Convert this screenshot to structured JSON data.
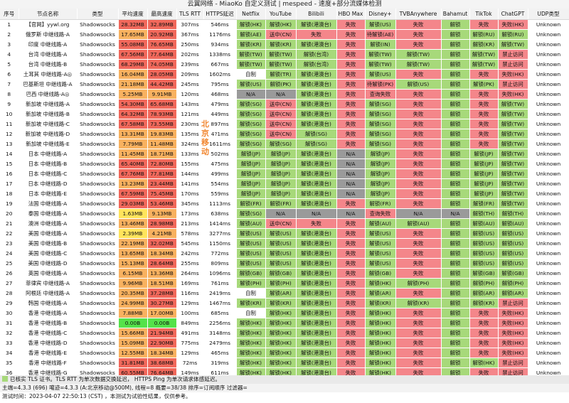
{
  "title": "云翼网络 - MiaoKo 自定义测试 | mespeed - 速度+部分流媒体检测",
  "columns": [
    "序号",
    "节点名称",
    "类型",
    "平均速度",
    "最高速度",
    "TLS RTT",
    "HTTPS延迟",
    "Netflix",
    "YouTube",
    "Bilibili",
    "HBO Max",
    "Disney+",
    "TVBAnywhere",
    "Bahamut",
    "TikTok",
    "ChatGPT",
    "UDP类型"
  ],
  "watermark": "北京移动",
  "rows": [
    [
      "1",
      "【官网】yywl.org",
      "Shadowsocks",
      "28.32MB",
      "32.89MB",
      "307ms",
      "546ms",
      "解锁(HK)",
      "解锁(HK)",
      "解锁(港澳台)",
      "失败",
      "解锁(US)",
      "失败",
      "解锁",
      "失败",
      "失败(HK)",
      "Unknown"
    ],
    [
      "2",
      "俄罗斯 中继线路-A",
      "Shadowsocks",
      "17.65MB",
      "20.92MB",
      "367ms",
      "1176ms",
      "解锁(AE)",
      "送中(CN)",
      "失败",
      "失败",
      "待解锁(AE)",
      "失败",
      "解锁",
      "解锁(RU)",
      "解锁(RU)",
      "Unknown"
    ],
    [
      "3",
      "印度 中继线路-A",
      "Shadowsocks",
      "55.08MB",
      "76.65MB",
      "250ms",
      "934ms",
      "解锁(KR)",
      "解锁(KR)",
      "解锁(港澳台)",
      "失败",
      "解锁(IN)",
      "失败",
      "解锁",
      "解锁(KR)",
      "解锁(TW)",
      "Unknown"
    ],
    [
      "4",
      "台湾 中继线路-A",
      "Shadowsocks",
      "67.56MB",
      "77.64MB",
      "202ms",
      "1338ms",
      "解锁(TW)",
      "解锁(TW)",
      "解锁(台湾)",
      "失败",
      "解锁(TW)",
      "解锁(TW)",
      "解锁",
      "解锁(TW)",
      "禁止访问",
      "Unknown"
    ],
    [
      "5",
      "台湾 中继线路-B",
      "Shadowsocks",
      "68.29MB",
      "74.05MB",
      "239ms",
      "667ms",
      "解锁(TW)",
      "解锁(TW)",
      "解锁(台湾)",
      "失败",
      "解锁(TW)",
      "解锁(TW)",
      "解锁",
      "解锁(TW)",
      "禁止访问",
      "Unknown"
    ],
    [
      "6",
      "土耳其 中继线路-A◎",
      "Shadowsocks",
      "16.04MB",
      "28.05MB",
      "209ms",
      "1602ms",
      "自制",
      "解锁(TR)",
      "解锁(港澳台)",
      "失败",
      "解锁(US)",
      "失败",
      "解锁",
      "失败",
      "失败(HK)",
      "Unknown"
    ],
    [
      "7",
      "巴基斯坦 中继线路-A",
      "Shadowsocks",
      "21.18MB",
      "44.42MB",
      "245ms",
      "795ms",
      "解锁(US)",
      "解锁(PK)",
      "解锁(港澳台)",
      "失败",
      "待解锁(PK)",
      "解锁(US)",
      "解锁",
      "解锁(PK)",
      "禁止访问",
      "Unknown"
    ],
    [
      "8",
      "巴西 中继线路-A◎",
      "Shadowsocks",
      "5.25MB",
      "9.91MB",
      "120ms",
      "468ms",
      "N/A",
      "N/A",
      "解锁(港澳台)",
      "失败",
      "查询失败",
      "失败",
      "解锁",
      "失败",
      "失败(HK)",
      "Unknown"
    ],
    [
      "9",
      "新加坡 中继线路-A",
      "Shadowsocks",
      "54.30MB",
      "65.68MB",
      "143ms",
      "479ms",
      "解锁(SG)",
      "送中(CN)",
      "解锁(港澳台)",
      "失败",
      "解锁(SG)",
      "失败",
      "解锁",
      "失败",
      "解锁(TW)",
      "Unknown"
    ],
    [
      "10",
      "新加坡 中继线路-B",
      "Shadowsocks",
      "64.32MB",
      "78.93MB",
      "121ms",
      "449ms",
      "解锁(SG)",
      "送中(CN)",
      "解锁(港澳台)",
      "失败",
      "解锁(SG)",
      "失败",
      "解锁",
      "失败",
      "解锁(TW)",
      "Unknown"
    ],
    [
      "11",
      "新加坡 中继线路-C",
      "Shadowsocks",
      "67.58MB",
      "73.55MB",
      "230ms",
      "897ms",
      "解锁(SG)",
      "送中(CN)",
      "解锁(港澳台)",
      "失败",
      "解锁(SG)",
      "失败",
      "解锁",
      "失败",
      "解锁(TW)",
      "Unknown"
    ],
    [
      "12",
      "新加坡 中继线路-D",
      "Shadowsocks",
      "13.31MB",
      "19.83MB",
      "135ms",
      "4?1ms",
      "解锁(SG)",
      "送中(CN)",
      "解锁(SG)",
      "失败",
      "解锁(SG)",
      "失败",
      "解锁",
      "失败",
      "解锁(TW)",
      "Unknown"
    ],
    [
      "13",
      "新加坡 中继线路-E",
      "Shadowsocks",
      "7.79MB",
      "11.48MB",
      "324ms",
      "1611ms",
      "解锁(SG)",
      "解锁(SG)",
      "解锁(SG)",
      "失败",
      "解锁(SG)",
      "失败",
      "解锁",
      "失败",
      "解锁(TW)",
      "Unknown"
    ],
    [
      "14",
      "日本 中继线路-A",
      "Shadowsocks",
      "11.45MB",
      "18.71MB",
      "133ms",
      "502ms",
      "解锁(JP)",
      "解锁(JP)",
      "解锁(港澳台)",
      "N/A",
      "解锁(JP)",
      "失败",
      "解锁",
      "解锁(JP)",
      "解锁(TW)",
      "Unknown"
    ],
    [
      "15",
      "日本 中继线路-B",
      "Shadowsocks",
      "65.40MB",
      "72.80MB",
      "155ms",
      "475ms",
      "解锁(JP)",
      "解锁(JP)",
      "解锁(港澳台)",
      "N/A",
      "解锁(JP)",
      "失败",
      "解锁",
      "解锁(JP)",
      "解锁(TW)",
      "Unknown"
    ],
    [
      "16",
      "日本 中继线路-C",
      "Shadowsocks",
      "67.76MB",
      "77.81MB",
      "144ms",
      "499ms",
      "解锁(JP)",
      "解锁(JP)",
      "解锁(港澳台)",
      "N/A",
      "解锁(JP)",
      "失败",
      "解锁",
      "解锁(JP)",
      "解锁(TW)",
      "Unknown"
    ],
    [
      "17",
      "日本 中继线路-D",
      "Shadowsocks",
      "13.23MB",
      "23.44MB",
      "141ms",
      "554ms",
      "解锁(JP)",
      "解锁(JP)",
      "解锁(港澳台)",
      "N/A",
      "解锁(JP)",
      "失败",
      "解锁",
      "解锁(JP)",
      "解锁(TW)",
      "Unknown"
    ],
    [
      "18",
      "日本 中继线路-E",
      "Shadowsocks",
      "67.59MB",
      "75.45MB",
      "170ms",
      "559ms",
      "解锁(JP)",
      "解锁(JP)",
      "解锁(港澳台)",
      "N/A",
      "解锁(JP)",
      "失败",
      "解锁",
      "解锁(JP)",
      "解锁(TW)",
      "Unknown"
    ],
    [
      "19",
      "法国 中继线路-A",
      "Shadowsocks",
      "29.03MB",
      "53.46MB",
      "345ms",
      "1113ms",
      "解锁(FR)",
      "解锁(FR)",
      "解锁(港澳台)",
      "失败",
      "解锁(FR)",
      "失败",
      "解锁",
      "解锁(FR)",
      "解锁(TW)",
      "Unknown"
    ],
    [
      "20",
      "泰国 中继线路-A",
      "Shadowsocks",
      "1.63MB",
      "9.13MB",
      "173ms",
      "638ms",
      "解锁(SG)",
      "N/A",
      "N/A",
      "N/A",
      "查询失败",
      "N/A",
      "N/A",
      "解锁(TH)",
      "解锁(TH)",
      "Unknown"
    ],
    [
      "21",
      "澳洲 中继线路-A",
      "Shadowsocks",
      "13.46MB",
      "28.98MB",
      "213ms",
      "1414ms",
      "解锁(AU)",
      "送中(CN)",
      "失败",
      "失败",
      "解锁(AU)",
      "解锁(AU)",
      "解锁",
      "解锁(AU)",
      "解锁(AU)",
      "Unknown"
    ],
    [
      "22",
      "美国 中继线路-A",
      "Shadowsocks",
      "2.39MB",
      "4.21MB",
      "578ms",
      "3277ms",
      "解锁(US)",
      "解锁(US)",
      "解锁(港澳台)",
      "失败",
      "解锁(US)",
      "失败",
      "解锁",
      "解锁(US)",
      "解锁(US)",
      "Unknown"
    ],
    [
      "23",
      "美国 中继线路-B",
      "Shadowsocks",
      "22.19MB",
      "32.02MB",
      "545ms",
      "1150ms",
      "解锁(US)",
      "解锁(US)",
      "解锁(港澳台)",
      "失败",
      "解锁(US)",
      "失败",
      "解锁",
      "解锁(US)",
      "解锁(US)",
      "Unknown"
    ],
    [
      "24",
      "美国 中继线路-C",
      "Shadowsocks",
      "13.65MB",
      "18.34MB",
      "242ms",
      "772ms",
      "解锁(US)",
      "解锁(US)",
      "解锁(港澳台)",
      "失败",
      "解锁(US)",
      "失败",
      "解锁",
      "解锁(US)",
      "解锁(US)",
      "Unknown"
    ],
    [
      "25",
      "美国 中继线路-D",
      "Shadowsocks",
      "15.13MB",
      "28.64MB",
      "255ms",
      "809ms",
      "解锁(US)",
      "解锁(US)",
      "解锁(港澳台)",
      "失败",
      "解锁(US)",
      "失败",
      "解锁",
      "解锁(US)",
      "解锁(US)",
      "Unknown"
    ],
    [
      "26",
      "英国 中继线路-A",
      "Shadowsocks",
      "6.15MB",
      "13.36MB",
      "264ms",
      "1096ms",
      "解锁(GB)",
      "解锁(GB)",
      "解锁(港澳台)",
      "失败",
      "解锁(GB)",
      "失败",
      "解锁",
      "解锁(GB)",
      "解锁(GB)",
      "Unknown"
    ],
    [
      "27",
      "菲律宾 中继线路-A",
      "Shadowsocks",
      "9.96MB",
      "18.51MB",
      "169ms",
      "761ms",
      "解锁(PH)",
      "解锁(PH)",
      "解锁(港澳台)",
      "失败",
      "解锁(HK)",
      "解锁(PH)",
      "解锁",
      "解锁(PH)",
      "解锁(PH)",
      "Unknown"
    ],
    [
      "28",
      "阿根廷 中继线路-A",
      "Shadowsocks",
      "20.35MB",
      "37.28MB",
      "116ms",
      "2419ms",
      "自制",
      "解锁(AR)",
      "解锁(港澳台)",
      "失败",
      "解锁(AR)",
      "失败",
      "解锁",
      "解锁(AR)",
      "解锁(AR)",
      "Unknown"
    ],
    [
      "29",
      "韩国 中继线路-A",
      "Shadowsocks",
      "24.99MB",
      "30.27MB",
      "129ms",
      "1467ms",
      "解锁(KR)",
      "解锁(KR)",
      "解锁(港澳台)",
      "失败",
      "解锁(KR)",
      "解锁(KR)",
      "解锁",
      "解锁(KR)",
      "禁止访问",
      "Unknown"
    ],
    [
      "30",
      "香港 中继线路-A",
      "Shadowsocks",
      "7.88MB",
      "17.00MB",
      "100ms",
      "685ms",
      "自制",
      "解锁(HK)",
      "解锁(港澳台)",
      "失败",
      "解锁(HK)",
      "失败",
      "解锁",
      "失败",
      "失败(HK)",
      "Unknown"
    ],
    [
      "31",
      "香港 中继线路-B",
      "Shadowsocks",
      "0.00B",
      "0.00B",
      "849ms",
      "2256ms",
      "解锁(HK)",
      "解锁(HK)",
      "解锁(港澳台)",
      "失败",
      "解锁(HK)",
      "失败",
      "解锁",
      "失败",
      "失败(HK)",
      "Unknown"
    ],
    [
      "32",
      "香港 中继线路-C",
      "Shadowsocks",
      "15.66MB",
      "21.94MB",
      "491ms",
      "3148ms",
      "解锁(HK)",
      "解锁(HK)",
      "解锁(港澳台)",
      "失败",
      "解锁(HK)",
      "失败",
      "解锁",
      "失败",
      "失败(HK)",
      "Unknown"
    ],
    [
      "33",
      "香港 中继线路-D",
      "Shadowsocks",
      "15.09MB",
      "22.90MB",
      "775ms",
      "2479ms",
      "解锁(HK)",
      "解锁(HK)",
      "解锁(港澳台)",
      "失败",
      "解锁(HK)",
      "失败",
      "解锁",
      "失败",
      "失败(HK)",
      "Unknown"
    ],
    [
      "34",
      "香港 中继线路-E",
      "Shadowsocks",
      "12.55MB",
      "18.34MB",
      "129ms",
      "465ms",
      "解锁(HK)",
      "解锁(HK)",
      "解锁(港澳台)",
      "失败",
      "解锁(HK)",
      "失败",
      "解锁",
      "失败",
      "失败(HK)",
      "Unknown"
    ],
    [
      "35",
      "香港 中继线路-F",
      "Shadowsocks",
      "31.81MB",
      "38.68MB",
      "72ms",
      "319ms",
      "解锁(HK)",
      "解锁(HK)",
      "解锁(港澳台)",
      "失败",
      "解锁(HK)",
      "失败",
      "解锁",
      "解锁(HK)",
      "禁止访问",
      "Unknown"
    ],
    [
      "36",
      "香港 中继线路-G",
      "Shadowsocks",
      "60.55MB",
      "76.64MB",
      "149ms",
      "611ms",
      "解锁(HK)",
      "解锁(HK)",
      "解锁(港澳台)",
      "失败",
      "解锁(HK)",
      "失败",
      "解锁",
      "失败",
      "禁止访问",
      "Unknown"
    ],
    [
      "37",
      "香港 中继线路-H",
      "Shadowsocks",
      "1.40MB",
      "2.34MB",
      "425ms",
      "1806ms",
      "解锁(HK)",
      "失败",
      "失败",
      "失败",
      "失败",
      "失败",
      "解锁",
      "失败",
      "失败(HK)",
      "Unknown"
    ],
    [
      "38",
      "香港 中继线路-I",
      "Shadowsocks",
      "61.97MB",
      "71.57MB",
      "250ms",
      "769ms",
      "解锁(HK)",
      "解锁(HK)",
      "解锁(港澳台)",
      "失败",
      "解锁(HK)",
      "失败",
      "解锁",
      "解锁(HK)",
      "解锁(TW)",
      "Unknown"
    ]
  ],
  "footer": {
    "line1": "已核实 TLS 证书。TLS RTT 为单次数据交换延迟， HTTPS Ping 为单次请求体感延迟。",
    "line2": "主端=4.3.3 (696) 噶迹=4.3.3 (A:北京移动@500M), 线程=8 概要=38/38 排序=订阅顺序 过滤器=",
    "line3": "测试时间：2023-04-07 22:50:13 (CST) ，本测试为试验性结果，仅供参考。"
  },
  "colors": {
    "unlock": "#a7d97a",
    "fail": "#f4868a",
    "na": "#9a9a9a",
    "self_made": "#ffffff",
    "speed_red": "#f1685b",
    "speed_orange": "#f8b15f",
    "speed_yellow": "#ffe45b",
    "speed_green": "#54e24a"
  }
}
